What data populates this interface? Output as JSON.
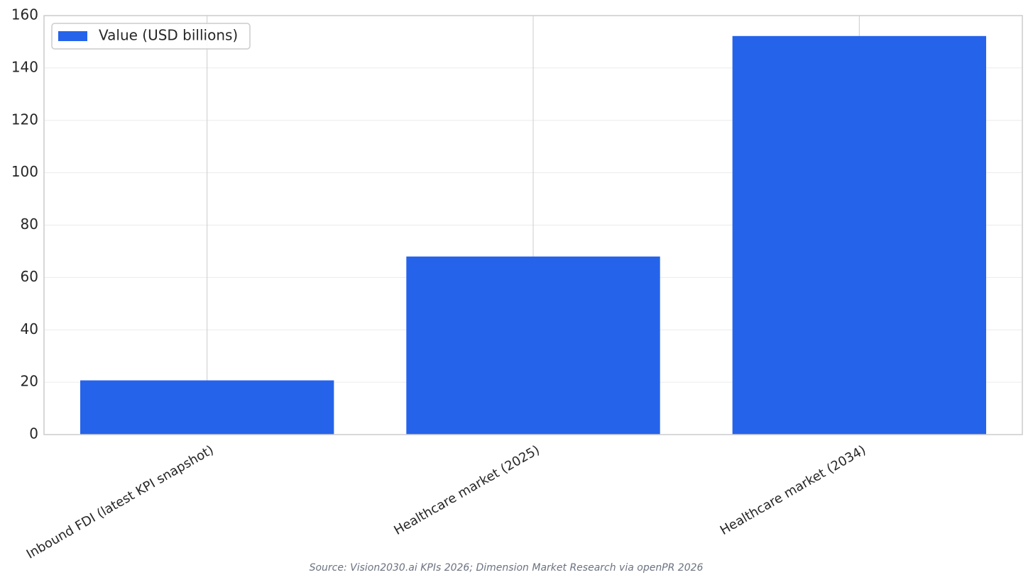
{
  "chart_data": {
    "type": "bar",
    "categories": [
      "Inbound FDI (latest KPI snapshot)",
      "Healthcare market (2025)",
      "Healthcare market (2034)"
    ],
    "series": [
      {
        "name": "Value (USD billions)",
        "color": "#2563eb",
        "values": [
          20.7,
          68,
          152.2
        ]
      }
    ],
    "ylim": [
      0,
      160
    ],
    "yticks": [
      0,
      20,
      40,
      60,
      80,
      100,
      120,
      140,
      160
    ],
    "grid": true,
    "legend": "upper-left",
    "source": "Source: Vision2030.ai KPIs 2026; Dimension Market Research via openPR 2026"
  }
}
